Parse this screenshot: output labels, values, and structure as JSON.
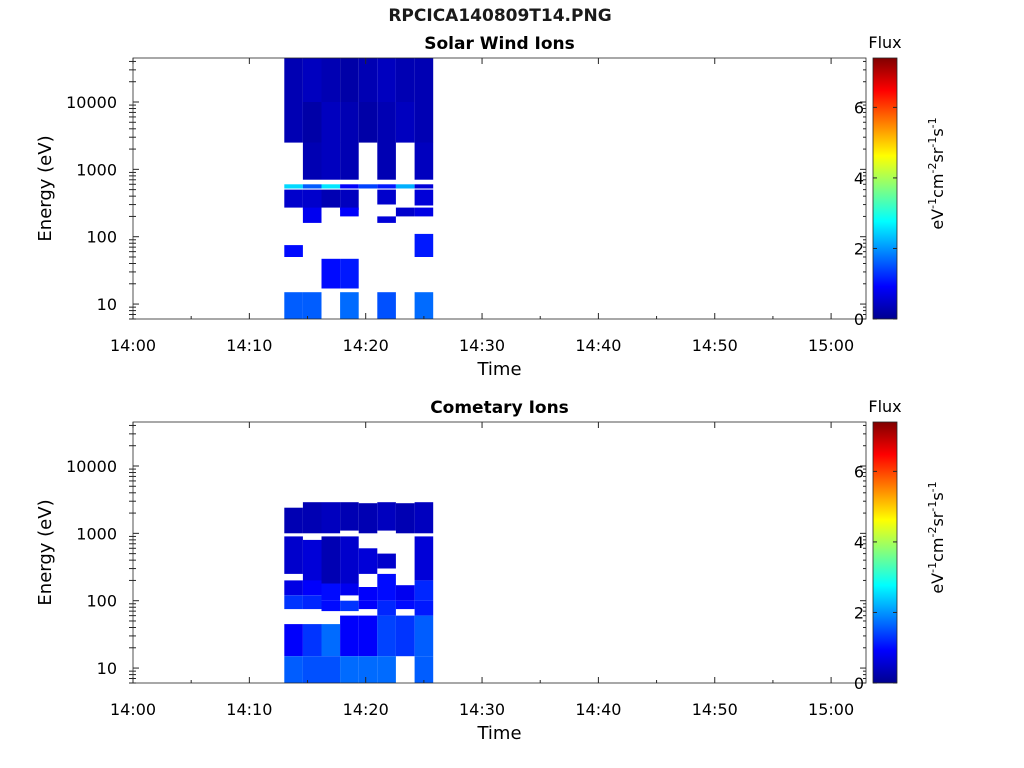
{
  "figure": {
    "title": "RPCICA140809T14.PNG"
  },
  "colors": {
    "cmap": [
      "#00008f",
      "#0000ff",
      "#0080ff",
      "#00ffff",
      "#80ff80",
      "#ffff00",
      "#ff8000",
      "#ff0000",
      "#800000"
    ]
  },
  "chart_data": [
    {
      "type": "heatmap",
      "title": "Solar Wind Ions",
      "xlabel": "Time",
      "ylabel": "Energy (eV)",
      "yscale": "log",
      "xlim": [
        "14:00",
        "15:03"
      ],
      "ylim": [
        6,
        45000
      ],
      "xticks": [
        "14:00",
        "14:10",
        "14:20",
        "14:30",
        "14:40",
        "14:50",
        "15:00"
      ],
      "yticks": [
        10,
        100,
        1000,
        10000
      ],
      "colorbar": {
        "label": "Flux",
        "units": "eV-1cm-2sr-1s-1",
        "range": [
          0,
          7.4
        ],
        "ticks": [
          0,
          2,
          4,
          6
        ]
      },
      "time_columns": [
        "14:13",
        "14:14.6",
        "14:16.2",
        "14:17.8",
        "14:19.4",
        "14:21",
        "14:22.6",
        "14:24.2"
      ],
      "column_end": "14:25.8",
      "cells": [
        {
          "t": 0,
          "e": [
            10000,
            45000
          ],
          "v": 0.3
        },
        {
          "t": 1,
          "e": [
            10000,
            45000
          ],
          "v": 0.4
        },
        {
          "t": 2,
          "e": [
            10000,
            45000
          ],
          "v": 0.3
        },
        {
          "t": 3,
          "e": [
            10000,
            45000
          ],
          "v": 0.2
        },
        {
          "t": 4,
          "e": [
            10000,
            45000
          ],
          "v": 0.3
        },
        {
          "t": 5,
          "e": [
            10000,
            45000
          ],
          "v": 0.4
        },
        {
          "t": 6,
          "e": [
            10000,
            45000
          ],
          "v": 0.3
        },
        {
          "t": 7,
          "e": [
            10000,
            45000
          ],
          "v": 0.3
        },
        {
          "t": 0,
          "e": [
            2500,
            10000
          ],
          "v": 0.3
        },
        {
          "t": 1,
          "e": [
            2500,
            10000
          ],
          "v": 0.2
        },
        {
          "t": 2,
          "e": [
            2500,
            10000
          ],
          "v": 0.4
        },
        {
          "t": 3,
          "e": [
            2500,
            10000
          ],
          "v": 0.3
        },
        {
          "t": 4,
          "e": [
            2500,
            10000
          ],
          "v": 0.2
        },
        {
          "t": 5,
          "e": [
            2500,
            10000
          ],
          "v": 0.3
        },
        {
          "t": 6,
          "e": [
            2500,
            10000
          ],
          "v": 0.4
        },
        {
          "t": 7,
          "e": [
            2500,
            10000
          ],
          "v": 0.3
        },
        {
          "t": 1,
          "e": [
            700,
            2500
          ],
          "v": 0.3
        },
        {
          "t": 2,
          "e": [
            700,
            2500
          ],
          "v": 0.4
        },
        {
          "t": 3,
          "e": [
            700,
            2500
          ],
          "v": 0.3
        },
        {
          "t": 5,
          "e": [
            700,
            2500
          ],
          "v": 0.3
        },
        {
          "t": 7,
          "e": [
            700,
            2500
          ],
          "v": 0.4
        },
        {
          "t": 0,
          "e": [
            520,
            600
          ],
          "v": 2.5
        },
        {
          "t": 1,
          "e": [
            520,
            600
          ],
          "v": 1.6
        },
        {
          "t": 2,
          "e": [
            520,
            600
          ],
          "v": 2.6
        },
        {
          "t": 3,
          "e": [
            520,
            600
          ],
          "v": 0.9
        },
        {
          "t": 4,
          "e": [
            520,
            600
          ],
          "v": 1.4
        },
        {
          "t": 5,
          "e": [
            520,
            600
          ],
          "v": 1.1
        },
        {
          "t": 6,
          "e": [
            520,
            600
          ],
          "v": 2.2
        },
        {
          "t": 7,
          "e": [
            520,
            600
          ],
          "v": 0.6
        },
        {
          "t": 0,
          "e": [
            270,
            500
          ],
          "v": 0.5
        },
        {
          "t": 1,
          "e": [
            250,
            500
          ],
          "v": 0.5
        },
        {
          "t": 2,
          "e": [
            270,
            500
          ],
          "v": 0.3
        },
        {
          "t": 3,
          "e": [
            250,
            500
          ],
          "v": 0.4
        },
        {
          "t": 5,
          "e": [
            300,
            500
          ],
          "v": 0.5
        },
        {
          "t": 7,
          "e": [
            290,
            500
          ],
          "v": 0.6
        },
        {
          "t": 1,
          "e": [
            160,
            270
          ],
          "v": 0.8
        },
        {
          "t": 3,
          "e": [
            200,
            270
          ],
          "v": 0.9
        },
        {
          "t": 5,
          "e": [
            160,
            200
          ],
          "v": 0.6
        },
        {
          "t": 6,
          "e": [
            200,
            270
          ],
          "v": 0.5
        },
        {
          "t": 7,
          "e": [
            200,
            270
          ],
          "v": 0.7
        },
        {
          "t": 0,
          "e": [
            50,
            75
          ],
          "v": 1.0
        },
        {
          "t": 7,
          "e": [
            50,
            110
          ],
          "v": 1.1
        },
        {
          "t": 2,
          "e": [
            17,
            47
          ],
          "v": 1.0
        },
        {
          "t": 3,
          "e": [
            17,
            47
          ],
          "v": 1.1
        },
        {
          "t": 0,
          "e": [
            6,
            15
          ],
          "v": 1.6
        },
        {
          "t": 1,
          "e": [
            6,
            15
          ],
          "v": 1.6
        },
        {
          "t": 3,
          "e": [
            6,
            15
          ],
          "v": 1.7
        },
        {
          "t": 5,
          "e": [
            6,
            15
          ],
          "v": 1.5
        },
        {
          "t": 7,
          "e": [
            6,
            15
          ],
          "v": 1.7
        }
      ]
    },
    {
      "type": "heatmap",
      "title": "Cometary Ions",
      "xlabel": "Time",
      "ylabel": "Energy (eV)",
      "yscale": "log",
      "xlim": [
        "14:00",
        "15:03"
      ],
      "ylim": [
        6,
        45000
      ],
      "xticks": [
        "14:00",
        "14:10",
        "14:20",
        "14:30",
        "14:40",
        "14:50",
        "15:00"
      ],
      "yticks": [
        10,
        100,
        1000,
        10000
      ],
      "colorbar": {
        "label": "Flux",
        "units": "eV-1cm-2sr-1s-1",
        "range": [
          0,
          7.4
        ],
        "ticks": [
          0,
          2,
          4,
          6
        ]
      },
      "time_columns": [
        "14:13",
        "14:14.6",
        "14:16.2",
        "14:17.8",
        "14:19.4",
        "14:21",
        "14:22.6",
        "14:24.2"
      ],
      "column_end": "14:25.8",
      "cells": [
        {
          "t": 0,
          "e": [
            1000,
            2400
          ],
          "v": 0.3
        },
        {
          "t": 1,
          "e": [
            1000,
            2900
          ],
          "v": 0.3
        },
        {
          "t": 2,
          "e": [
            1000,
            2900
          ],
          "v": 0.4
        },
        {
          "t": 3,
          "e": [
            1100,
            2900
          ],
          "v": 0.3
        },
        {
          "t": 4,
          "e": [
            1000,
            2800
          ],
          "v": 0.3
        },
        {
          "t": 5,
          "e": [
            1100,
            2900
          ],
          "v": 0.4
        },
        {
          "t": 6,
          "e": [
            1000,
            2800
          ],
          "v": 0.3
        },
        {
          "t": 7,
          "e": [
            1000,
            2900
          ],
          "v": 0.4
        },
        {
          "t": 0,
          "e": [
            250,
            900
          ],
          "v": 0.5
        },
        {
          "t": 1,
          "e": [
            200,
            800
          ],
          "v": 0.6
        },
        {
          "t": 2,
          "e": [
            180,
            900
          ],
          "v": 0.3
        },
        {
          "t": 3,
          "e": [
            180,
            900
          ],
          "v": 0.5
        },
        {
          "t": 4,
          "e": [
            250,
            600
          ],
          "v": 0.6
        },
        {
          "t": 5,
          "e": [
            300,
            500
          ],
          "v": 0.5
        },
        {
          "t": 7,
          "e": [
            200,
            900
          ],
          "v": 0.6
        },
        {
          "t": 0,
          "e": [
            120,
            200
          ],
          "v": 0.7
        },
        {
          "t": 1,
          "e": [
            120,
            200
          ],
          "v": 0.9
        },
        {
          "t": 2,
          "e": [
            100,
            180
          ],
          "v": 1.0
        },
        {
          "t": 3,
          "e": [
            120,
            180
          ],
          "v": 0.8
        },
        {
          "t": 4,
          "e": [
            100,
            160
          ],
          "v": 0.9
        },
        {
          "t": 5,
          "e": [
            100,
            250
          ],
          "v": 1.0
        },
        {
          "t": 6,
          "e": [
            100,
            170
          ],
          "v": 0.8
        },
        {
          "t": 7,
          "e": [
            100,
            200
          ],
          "v": 1.2
        },
        {
          "t": 0,
          "e": [
            75,
            120
          ],
          "v": 1.3
        },
        {
          "t": 1,
          "e": [
            75,
            120
          ],
          "v": 1.2
        },
        {
          "t": 2,
          "e": [
            70,
            100
          ],
          "v": 1.0
        },
        {
          "t": 3,
          "e": [
            70,
            100
          ],
          "v": 1.3
        },
        {
          "t": 4,
          "e": [
            75,
            100
          ],
          "v": 0.9
        },
        {
          "t": 5,
          "e": [
            60,
            100
          ],
          "v": 1.2
        },
        {
          "t": 6,
          "e": [
            75,
            100
          ],
          "v": 1.0
        },
        {
          "t": 7,
          "e": [
            60,
            100
          ],
          "v": 1.1
        },
        {
          "t": 0,
          "e": [
            15,
            45
          ],
          "v": 0.9
        },
        {
          "t": 1,
          "e": [
            15,
            45
          ],
          "v": 1.3
        },
        {
          "t": 2,
          "e": [
            15,
            45
          ],
          "v": 1.7
        },
        {
          "t": 3,
          "e": [
            15,
            60
          ],
          "v": 0.9
        },
        {
          "t": 4,
          "e": [
            15,
            60
          ],
          "v": 0.9
        },
        {
          "t": 5,
          "e": [
            15,
            60
          ],
          "v": 1.4
        },
        {
          "t": 6,
          "e": [
            15,
            60
          ],
          "v": 1.3
        },
        {
          "t": 7,
          "e": [
            15,
            60
          ],
          "v": 1.6
        },
        {
          "t": 0,
          "e": [
            6,
            15
          ],
          "v": 1.6
        },
        {
          "t": 1,
          "e": [
            6,
            15
          ],
          "v": 1.5
        },
        {
          "t": 2,
          "e": [
            6,
            15
          ],
          "v": 1.5
        },
        {
          "t": 3,
          "e": [
            6,
            15
          ],
          "v": 1.7
        },
        {
          "t": 4,
          "e": [
            6,
            15
          ],
          "v": 1.7
        },
        {
          "t": 5,
          "e": [
            6,
            15
          ],
          "v": 1.7
        },
        {
          "t": 7,
          "e": [
            6,
            15
          ],
          "v": 1.6
        }
      ]
    }
  ]
}
